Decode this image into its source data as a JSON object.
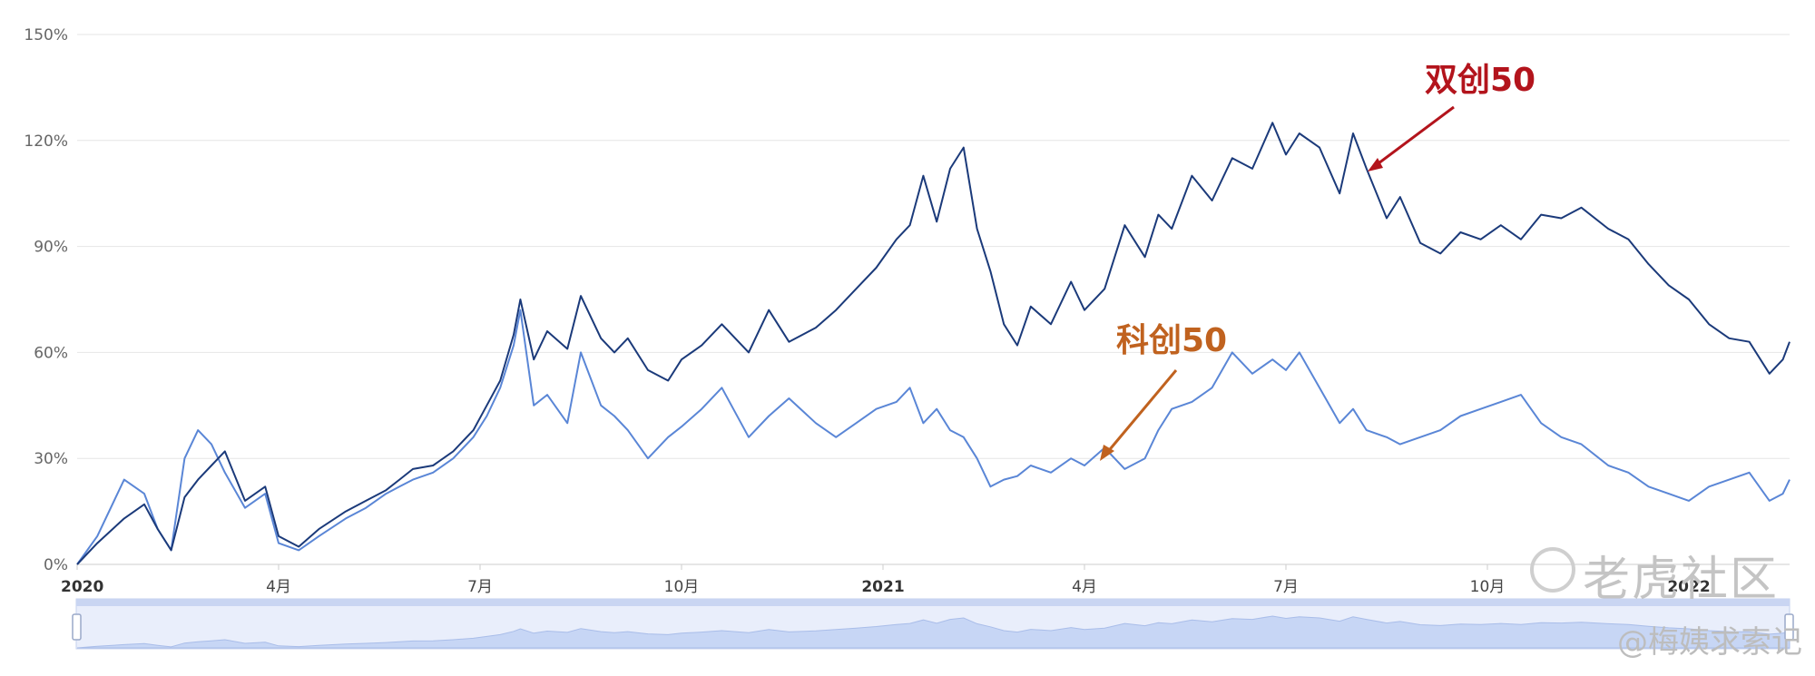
{
  "chart_data": {
    "type": "line",
    "title": "",
    "xlabel": "",
    "ylabel": "",
    "ylim": [
      0,
      150
    ],
    "y_ticks": [
      "0%",
      "30%",
      "60%",
      "90%",
      "120%",
      "150%"
    ],
    "x_ticks": [
      {
        "label": "2020",
        "t": 0,
        "bold": true
      },
      {
        "label": "4月",
        "t": 3,
        "bold": false
      },
      {
        "label": "7月",
        "t": 6,
        "bold": false
      },
      {
        "label": "10月",
        "t": 9,
        "bold": false
      },
      {
        "label": "2021",
        "t": 12,
        "bold": true
      },
      {
        "label": "4月",
        "t": 15,
        "bold": false
      },
      {
        "label": "7月",
        "t": 18,
        "bold": false
      },
      {
        "label": "10月",
        "t": 21,
        "bold": false
      },
      {
        "label": "2022",
        "t": 24,
        "bold": true
      }
    ],
    "x_range_months": [
      0,
      25.5
    ],
    "grid": true,
    "series": [
      {
        "name": "双创50",
        "color": "#1b3a7a",
        "t": [
          0,
          0.3,
          0.7,
          1.0,
          1.2,
          1.4,
          1.6,
          1.8,
          2.0,
          2.2,
          2.5,
          2.8,
          3.0,
          3.3,
          3.6,
          4.0,
          4.3,
          4.6,
          4.8,
          5.0,
          5.3,
          5.6,
          5.9,
          6.1,
          6.3,
          6.5,
          6.6,
          6.8,
          7.0,
          7.3,
          7.5,
          7.8,
          8.0,
          8.2,
          8.5,
          8.8,
          9.0,
          9.3,
          9.6,
          10.0,
          10.3,
          10.6,
          11.0,
          11.3,
          11.6,
          11.9,
          12.2,
          12.4,
          12.6,
          12.8,
          13.0,
          13.2,
          13.4,
          13.6,
          13.8,
          14.0,
          14.2,
          14.5,
          14.8,
          15.0,
          15.3,
          15.6,
          15.9,
          16.1,
          16.3,
          16.6,
          16.9,
          17.2,
          17.5,
          17.8,
          18.0,
          18.2,
          18.5,
          18.8,
          19.0,
          19.2,
          19.5,
          19.7,
          20.0,
          20.3,
          20.6,
          20.9,
          21.2,
          21.5,
          21.8,
          22.1,
          22.4,
          22.8,
          23.1,
          23.4,
          23.7,
          24.0,
          24.3,
          24.6,
          24.9,
          25.2,
          25.4,
          25.5
        ],
        "values": [
          0,
          6,
          13,
          17,
          10,
          4,
          19,
          24,
          28,
          32,
          18,
          22,
          8,
          5,
          10,
          15,
          18,
          21,
          24,
          27,
          28,
          32,
          38,
          45,
          52,
          65,
          75,
          58,
          66,
          61,
          76,
          64,
          60,
          64,
          55,
          52,
          58,
          62,
          68,
          60,
          72,
          63,
          67,
          72,
          78,
          84,
          92,
          96,
          110,
          97,
          112,
          118,
          95,
          83,
          68,
          62,
          73,
          68,
          80,
          72,
          78,
          96,
          87,
          99,
          95,
          110,
          103,
          115,
          112,
          125,
          116,
          122,
          118,
          105,
          122,
          112,
          98,
          104,
          91,
          88,
          94,
          92,
          96,
          92,
          99,
          98,
          101,
          95,
          92,
          85,
          79,
          75,
          68,
          64,
          63,
          54,
          58,
          63
        ]
      },
      {
        "name": "科创50",
        "color": "#5a86d6",
        "t": [
          0,
          0.3,
          0.7,
          1.0,
          1.2,
          1.4,
          1.6,
          1.8,
          2.0,
          2.2,
          2.5,
          2.8,
          3.0,
          3.3,
          3.6,
          4.0,
          4.3,
          4.6,
          4.8,
          5.0,
          5.3,
          5.6,
          5.9,
          6.1,
          6.3,
          6.5,
          6.6,
          6.8,
          7.0,
          7.3,
          7.5,
          7.8,
          8.0,
          8.2,
          8.5,
          8.8,
          9.0,
          9.3,
          9.6,
          10.0,
          10.3,
          10.6,
          11.0,
          11.3,
          11.6,
          11.9,
          12.2,
          12.4,
          12.6,
          12.8,
          13.0,
          13.2,
          13.4,
          13.6,
          13.8,
          14.0,
          14.2,
          14.5,
          14.8,
          15.0,
          15.3,
          15.6,
          15.9,
          16.1,
          16.3,
          16.6,
          16.9,
          17.2,
          17.5,
          17.8,
          18.0,
          18.2,
          18.5,
          18.8,
          19.0,
          19.2,
          19.5,
          19.7,
          20.0,
          20.3,
          20.6,
          20.9,
          21.2,
          21.5,
          21.8,
          22.1,
          22.4,
          22.8,
          23.1,
          23.4,
          23.7,
          24.0,
          24.3,
          24.6,
          24.9,
          25.2,
          25.4,
          25.5
        ],
        "values": [
          0,
          8,
          24,
          20,
          10,
          4,
          30,
          38,
          34,
          26,
          16,
          20,
          6,
          4,
          8,
          13,
          16,
          20,
          22,
          24,
          26,
          30,
          36,
          42,
          50,
          62,
          72,
          45,
          48,
          40,
          60,
          45,
          42,
          38,
          30,
          36,
          39,
          44,
          50,
          36,
          42,
          47,
          40,
          36,
          40,
          44,
          46,
          50,
          40,
          44,
          38,
          36,
          30,
          22,
          24,
          25,
          28,
          26,
          30,
          28,
          33,
          27,
          30,
          38,
          44,
          46,
          50,
          60,
          54,
          58,
          55,
          60,
          50,
          40,
          44,
          38,
          36,
          34,
          36,
          38,
          42,
          44,
          46,
          48,
          40,
          36,
          34,
          28,
          26,
          22,
          20,
          18,
          22,
          24,
          26,
          18,
          20,
          24
        ]
      }
    ],
    "annotations": [
      {
        "text": "双创50",
        "color": "#b3141c"
      },
      {
        "text": "科创50",
        "color": "#c0621f"
      }
    ]
  },
  "watermark": {
    "logo": "老虎社区",
    "user": "@梅姨求索记"
  }
}
